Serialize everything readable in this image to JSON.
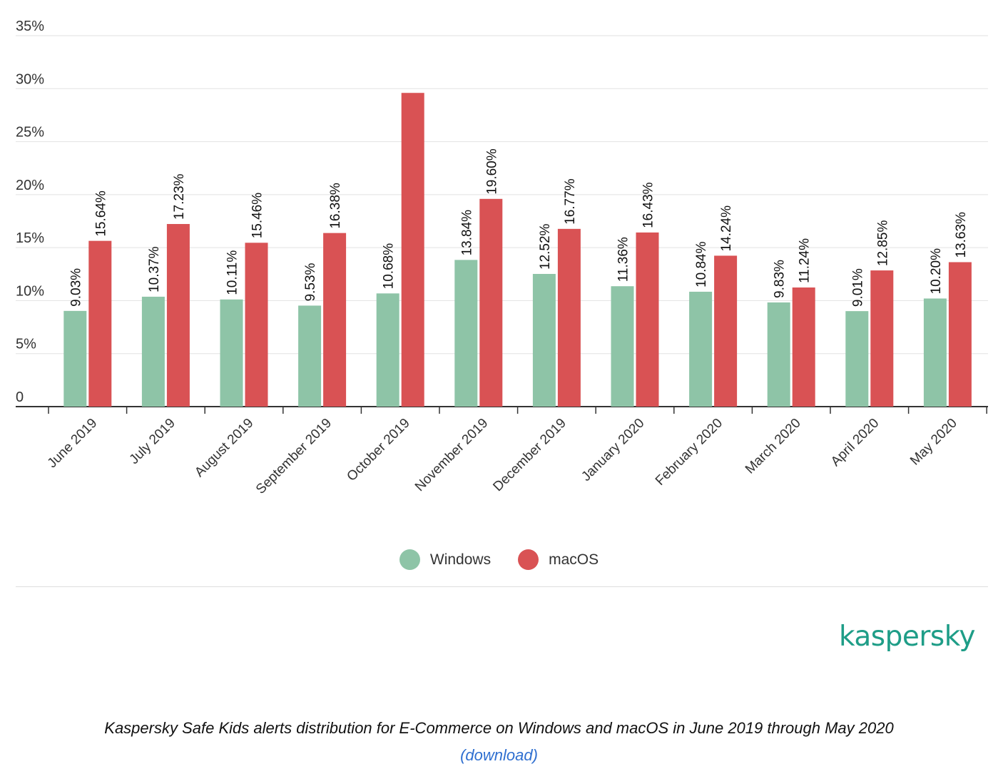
{
  "chart_data": {
    "type": "bar",
    "categories": [
      "June 2019",
      "July 2019",
      "August 2019",
      "September 2019",
      "October 2019",
      "November 2019",
      "December 2019",
      "January 2020",
      "February 2020",
      "March 2020",
      "April 2020",
      "May 2020"
    ],
    "series": [
      {
        "name": "Windows",
        "color": "#8ec4a7",
        "values": [
          9.03,
          10.37,
          10.11,
          9.53,
          10.68,
          13.84,
          12.52,
          11.36,
          10.84,
          9.83,
          9.01,
          10.2
        ],
        "labels": [
          "9.03%",
          "10.37%",
          "10.11%",
          "9.53%",
          "10.68%",
          "13.84%",
          "12.52%",
          "11.36%",
          "10.84%",
          "9.83%",
          "9.01%",
          "10.20%"
        ]
      },
      {
        "name": "macOS",
        "color": "#d95254",
        "values": [
          15.64,
          17.23,
          15.46,
          16.38,
          29.6,
          19.6,
          16.77,
          16.43,
          14.24,
          11.24,
          12.85,
          13.63
        ],
        "labels": [
          "15.64%",
          "17.23%",
          "15.46%",
          "16.38%",
          "",
          "19.60%",
          "16.77%",
          "16.43%",
          "14.24%",
          "11.24%",
          "12.85%",
          "13.63%"
        ]
      }
    ],
    "y_ticks": [
      "0",
      "5%",
      "10%",
      "15%",
      "20%",
      "25%",
      "30%",
      "35%"
    ],
    "ylim": [
      0,
      35
    ],
    "grid": true,
    "legend_position": "bottom-center"
  },
  "legend": {
    "windows": "Windows",
    "macos": "macOS"
  },
  "brand": "kaspersky",
  "caption": "Kaspersky Safe Kids alerts distribution for E-Commerce on Windows and macOS in June 2019 through May 2020",
  "download_link": "(download)"
}
